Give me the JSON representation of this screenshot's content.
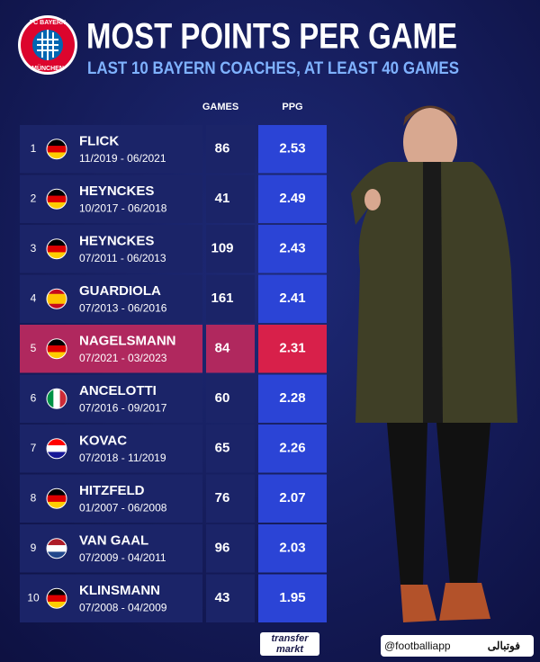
{
  "header": {
    "logo_top": "FC BAYERN",
    "logo_bottom": "MÜNCHEN",
    "title": "MOST POINTS PER GAME",
    "subtitle": "LAST 10 BAYERN COACHES, AT LEAST 40 GAMES"
  },
  "table": {
    "columns": [
      "GAMES",
      "PPG"
    ],
    "rows": [
      {
        "rank": 1,
        "name": "FLICK",
        "period": "11/2019 - 06/2021",
        "games": 86,
        "ppg": 2.53
      },
      {
        "rank": 2,
        "name": "HEYNCKES",
        "period": "10/2017 - 06/2018",
        "games": 41,
        "ppg": 2.49
      },
      {
        "rank": 3,
        "name": "HEYNCKES",
        "period": "07/2011 - 06/2013",
        "games": 109,
        "ppg": 2.43
      },
      {
        "rank": 4,
        "name": "GUARDIOLA",
        "period": "07/2013 - 06/2016",
        "games": 161,
        "ppg": 2.41
      },
      {
        "rank": 5,
        "name": "NAGELSMANN",
        "period": "07/2021 - 03/2023",
        "games": 84,
        "ppg": 2.31
      },
      {
        "rank": 6,
        "name": "ANCELOTTI",
        "period": "07/2016 - 09/2017",
        "games": 60,
        "ppg": 2.28
      },
      {
        "rank": 7,
        "name": "KOVAC",
        "period": "07/2018 - 11/2019",
        "games": 65,
        "ppg": 2.26
      },
      {
        "rank": 8,
        "name": "HITZFELD",
        "period": "01/2007 - 06/2008",
        "games": 76,
        "ppg": 2.07
      },
      {
        "rank": 9,
        "name": "VAN GAAL",
        "period": "07/2009 - 04/2011",
        "games": 96,
        "ppg": 2.03
      },
      {
        "rank": 10,
        "name": "KLINSMANN",
        "period": "07/2008 - 04/2009",
        "games": 43,
        "ppg": 1.95
      }
    ]
  },
  "footer": {
    "source_top": "transfer",
    "source_bottom": "markt",
    "handle": "@footballiapp",
    "brand": "فوتبالی"
  }
}
